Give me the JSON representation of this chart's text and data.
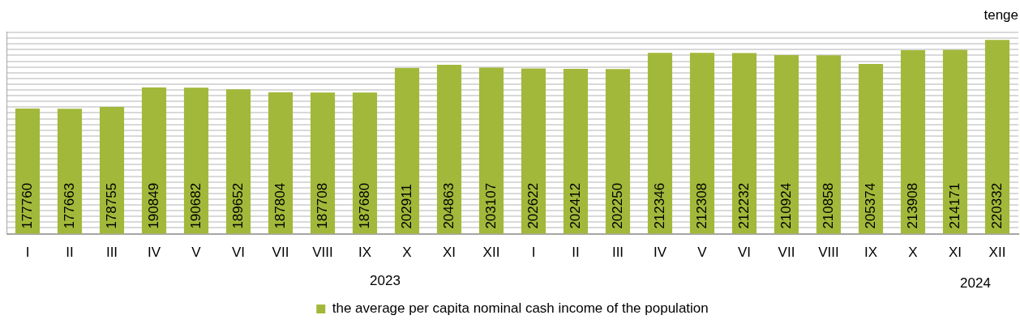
{
  "chart_data": {
    "type": "bar",
    "ylabel": "tenge",
    "categories": [
      "I",
      "II",
      "III",
      "IV",
      "V",
      "VI",
      "VII",
      "VIII",
      "IX",
      "X",
      "XI",
      "XII",
      "I",
      "II",
      "III",
      "IV",
      "V",
      "VI",
      "VII",
      "VIII",
      "IX",
      "X",
      "XI",
      "XII"
    ],
    "series": [
      {
        "name": "the average per capita nominal cash income of the population",
        "color": "#a2b83a",
        "values": [
          177760,
          177663,
          178755,
          190849,
          190682,
          189652,
          187804,
          187708,
          187680,
          202911,
          204863,
          203107,
          202622,
          202412,
          202250,
          212346,
          212308,
          212232,
          210924,
          210858,
          205374,
          213908,
          214171,
          220332
        ]
      }
    ],
    "ylim": [
      100000,
      225000
    ],
    "tick_labels": "x",
    "grid": "y",
    "data_labels": true,
    "legend": "bottom",
    "annotations": [
      "2023",
      "2024"
    ]
  }
}
